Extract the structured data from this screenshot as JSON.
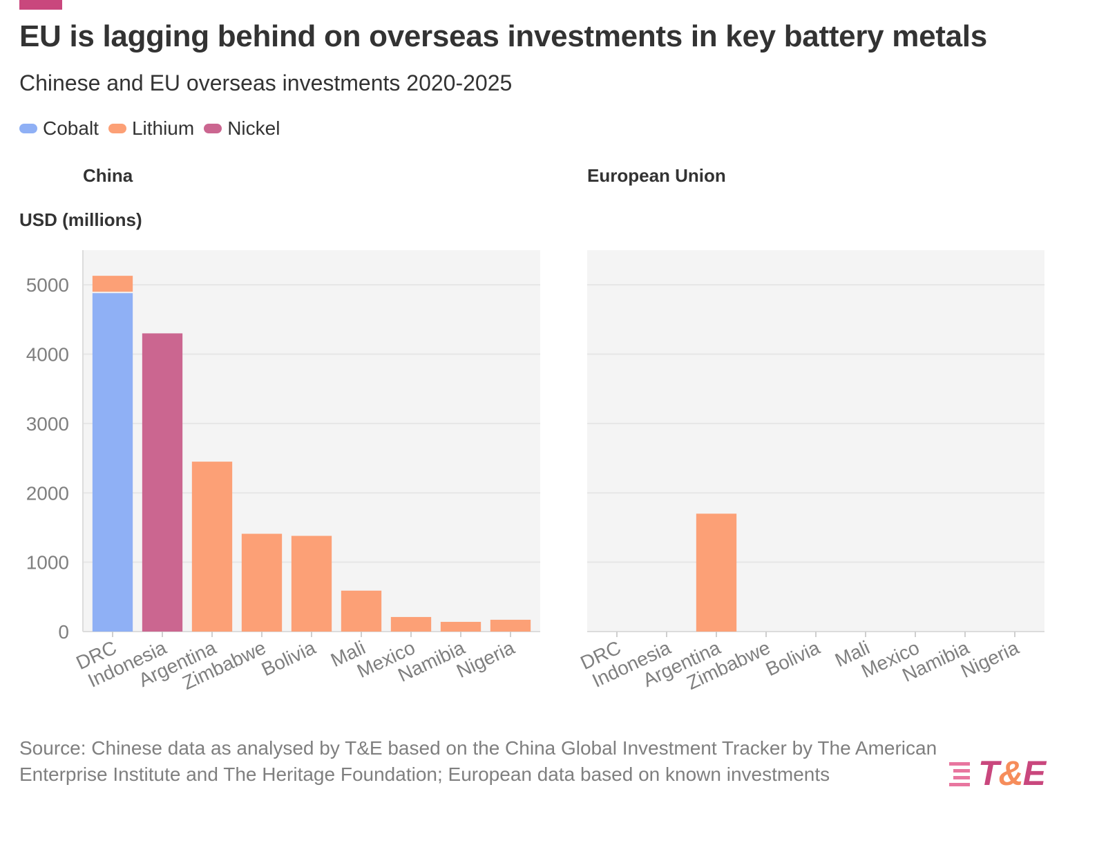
{
  "header": {
    "title": "EU is lagging behind on overseas investments in key battery metals",
    "subtitle": "Chinese and EU overseas investments 2020-2025"
  },
  "legend": [
    {
      "label": "Cobalt",
      "color": "#8fb0f5"
    },
    {
      "label": "Lithium",
      "color": "#fca076"
    },
    {
      "label": "Nickel",
      "color": "#cb6690"
    }
  ],
  "footer": {
    "source": "Source: Chinese data as analysed by T&E based on the China Global Investment Tracker by The American Enterprise Institute and The Heritage Foundation; European data based on known investments",
    "logo_left": "T",
    "logo_amp": "&",
    "logo_right": "E"
  },
  "colors": {
    "accent": "#c9477d",
    "plot_bg": "#f4f4f4",
    "grid": "#e6e6e6",
    "axis_text": "#7f7f7f"
  },
  "chart_data": [
    {
      "type": "bar",
      "stacked": true,
      "title": "China",
      "ylabel": "USD (millions)",
      "xlabel": "",
      "ylim": [
        0,
        5500
      ],
      "yticks": [
        0,
        1000,
        2000,
        3000,
        4000,
        5000
      ],
      "categories": [
        "DRC",
        "Indonesia",
        "Argentina",
        "Zimbabwe",
        "Bolivia",
        "Mali",
        "Mexico",
        "Namibia",
        "Nigeria"
      ],
      "series": [
        {
          "name": "Cobalt",
          "color": "#8fb0f5",
          "values": [
            4880,
            0,
            0,
            0,
            0,
            0,
            0,
            0,
            0
          ]
        },
        {
          "name": "Lithium",
          "color": "#fca076",
          "values": [
            250,
            0,
            2450,
            1410,
            1380,
            590,
            210,
            140,
            170
          ]
        },
        {
          "name": "Nickel",
          "color": "#cb6690",
          "values": [
            0,
            4300,
            0,
            0,
            0,
            0,
            0,
            0,
            0
          ]
        }
      ]
    },
    {
      "type": "bar",
      "stacked": true,
      "title": "European Union",
      "ylabel": "",
      "xlabel": "",
      "ylim": [
        0,
        5500
      ],
      "yticks": [
        0,
        1000,
        2000,
        3000,
        4000,
        5000
      ],
      "categories": [
        "DRC",
        "Indonesia",
        "Argentina",
        "Zimbabwe",
        "Bolivia",
        "Mali",
        "Mexico",
        "Namibia",
        "Nigeria"
      ],
      "series": [
        {
          "name": "Cobalt",
          "color": "#8fb0f5",
          "values": [
            0,
            0,
            0,
            0,
            0,
            0,
            0,
            0,
            0
          ]
        },
        {
          "name": "Lithium",
          "color": "#fca076",
          "values": [
            0,
            0,
            1700,
            0,
            0,
            0,
            0,
            0,
            0
          ]
        },
        {
          "name": "Nickel",
          "color": "#cb6690",
          "values": [
            0,
            0,
            0,
            0,
            0,
            0,
            0,
            0,
            0
          ]
        }
      ]
    }
  ]
}
